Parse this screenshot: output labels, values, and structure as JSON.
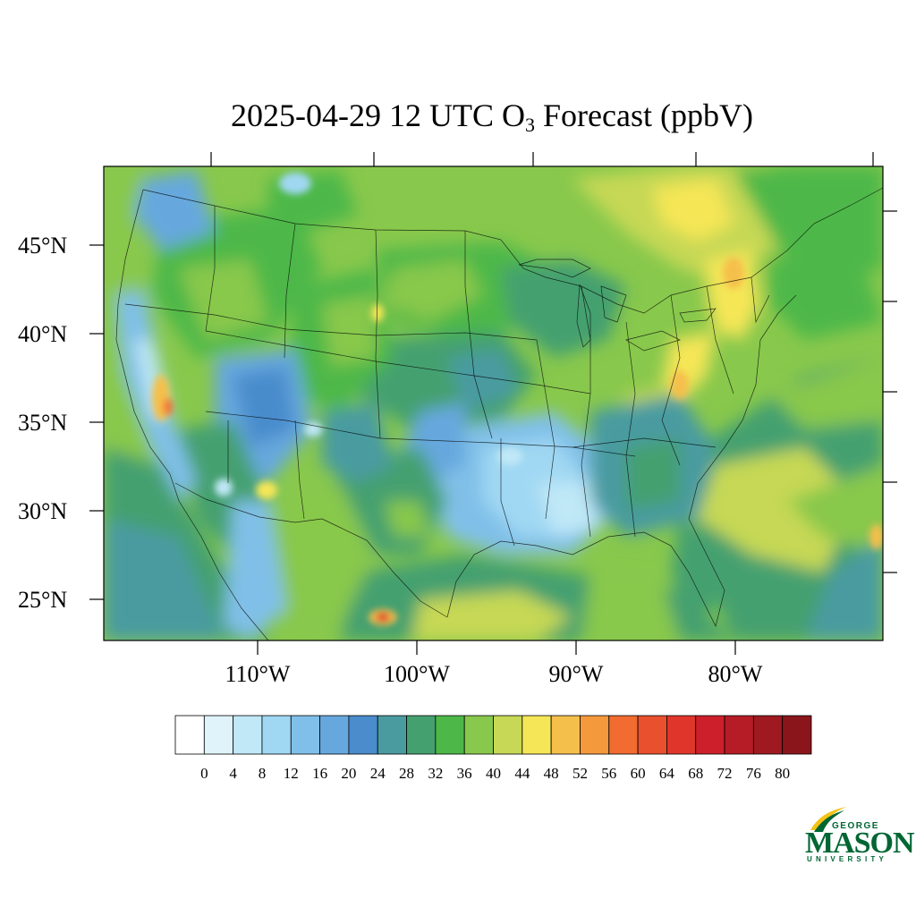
{
  "title": {
    "prefix": "2025-04-29 12 UTC O",
    "subscript": "3",
    "suffix": " Forecast (ppbV)"
  },
  "map": {
    "projection": "lambert-conformal",
    "extent_lon": [
      -120,
      -70
    ],
    "extent_lat": [
      22,
      50
    ],
    "lat_labels": [
      "45°N",
      "40°N",
      "35°N",
      "30°N",
      "25°N"
    ],
    "lon_labels": [
      "110°W",
      "100°W",
      "90°W",
      "80°W"
    ],
    "boundary_color": "#000000"
  },
  "colorbar": {
    "labels": [
      "0",
      "4",
      "8",
      "12",
      "16",
      "20",
      "24",
      "28",
      "32",
      "36",
      "40",
      "44",
      "48",
      "52",
      "56",
      "60",
      "64",
      "68",
      "72",
      "76",
      "80"
    ],
    "colors": [
      "#ffffff",
      "#e0f3fb",
      "#c0e8f7",
      "#a0d8f3",
      "#80c0e8",
      "#66a8de",
      "#4a8ccc",
      "#4a9ba0",
      "#45a070",
      "#4db848",
      "#88c84c",
      "#c6d855",
      "#f5e657",
      "#f5bf4c",
      "#f5993d",
      "#f26b30",
      "#e9502d",
      "#e0352b",
      "#cd1f2b",
      "#b51c25",
      "#9e1a20",
      "#8a161b"
    ]
  },
  "logo": {
    "line1": "GEORGE",
    "line2": "MASON",
    "line3": "UNIVERSITY",
    "color": "#006633",
    "accent": "#f3c317"
  }
}
